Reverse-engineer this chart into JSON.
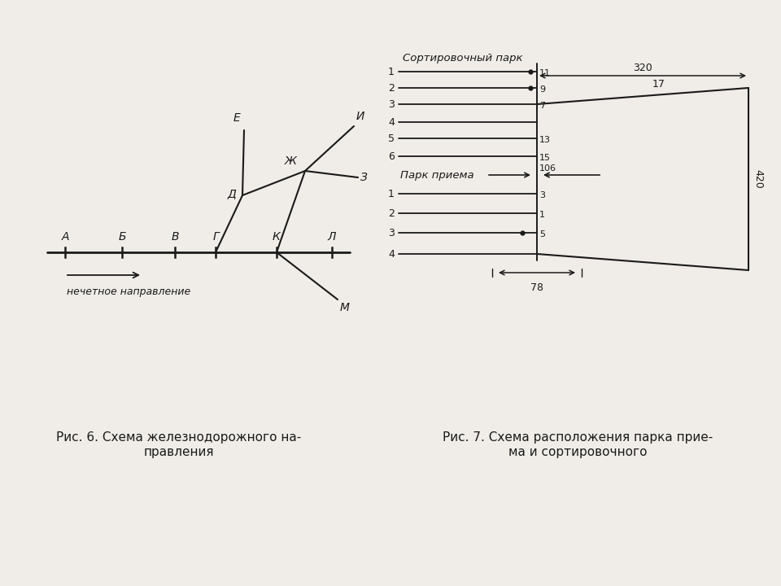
{
  "bg_color": "#f0ede8",
  "line_color": "#1a1a1a",
  "fig6_caption_line1": "Рис. 6. Схема железнодорожного на-",
  "fig6_caption_line2": "правления",
  "fig7_caption_line1": "Рис. 7. Схема расположения парка прие-",
  "fig7_caption_line2": "ма и сортировочного",
  "caption_fontsize": 11
}
